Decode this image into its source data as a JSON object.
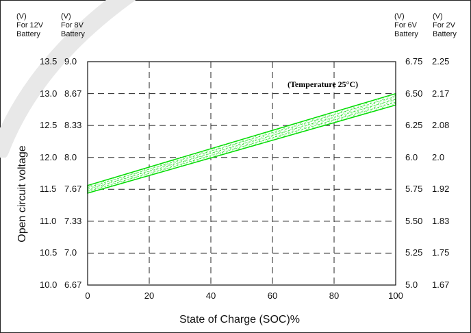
{
  "headers": {
    "v12": [
      "(V)",
      "For 12V",
      "Battery"
    ],
    "v8": [
      "(V)",
      "For 8V",
      "Battery"
    ],
    "v6": [
      "(V)",
      "For 6V",
      "Battery"
    ],
    "v2": [
      "(V)",
      "For 2V",
      "Battery"
    ]
  },
  "chart_data": {
    "type": "area",
    "title": "",
    "annotation": "(Temperature 25°C)",
    "xlabel": "State of Charge (SOC)%",
    "ylabel": "Open circuit voltage",
    "xlim": [
      0,
      100
    ],
    "ylim": [
      10.0,
      13.5
    ],
    "x_ticks": [
      "0",
      "20",
      "40",
      "60",
      "80",
      "100"
    ],
    "y_ticks_12v": [
      "13.5",
      "13.0",
      "12.5",
      "12.0",
      "11.5",
      "11.0",
      "10.5",
      "10.0"
    ],
    "y_ticks_8v": [
      "9.0",
      "8.67",
      "8.33",
      "8.0",
      "7.67",
      "7.33",
      "7.0",
      "6.67"
    ],
    "y_ticks_6v": [
      "6.75",
      "6.50",
      "6.25",
      "6.0",
      "5.75",
      "5.50",
      "5.25",
      "5.0"
    ],
    "y_ticks_2v": [
      "2.25",
      "2.17",
      "2.08",
      "2.0",
      "1.92",
      "1.83",
      "1.75",
      "1.67"
    ],
    "grid": true,
    "band": {
      "x": [
        0,
        100
      ],
      "upper": [
        11.56,
        13.0
      ],
      "lower": [
        11.44,
        12.82
      ]
    },
    "band_color": "#00dd00"
  }
}
